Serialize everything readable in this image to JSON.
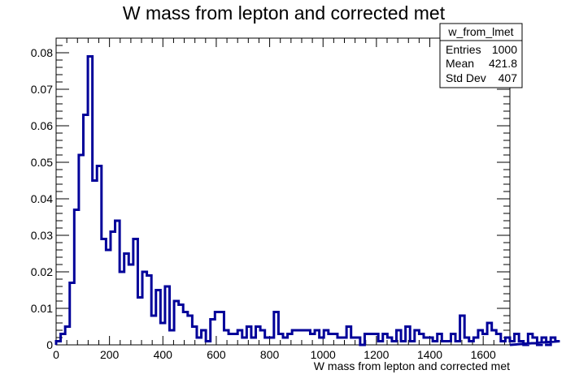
{
  "chart_data": {
    "type": "histogram",
    "title": "W mass from lepton and corrected met",
    "xlabel": "W mass from lepton and corrected met",
    "ylabel": "",
    "xlim": [
      0,
      1700
    ],
    "ylim": [
      0,
      0.084
    ],
    "bin_width": 17,
    "line_color": "#000099",
    "x_ticks": [
      0,
      200,
      400,
      600,
      800,
      1000,
      1200,
      1400,
      1600
    ],
    "x_tick_labels": [
      "0",
      "200",
      "400",
      "600",
      "800",
      "1000",
      "1200",
      "1400",
      "1600"
    ],
    "y_ticks": [
      0,
      0.01,
      0.02,
      0.03,
      0.04,
      0.05,
      0.06,
      0.07,
      0.08
    ],
    "y_tick_labels": [
      "0",
      "0.01",
      "0.02",
      "0.03",
      "0.04",
      "0.05",
      "0.06",
      "0.07",
      "0.08"
    ],
    "values": [
      0.001,
      0.003,
      0.005,
      0.017,
      0.037,
      0.052,
      0.063,
      0.079,
      0.045,
      0.049,
      0.029,
      0.026,
      0.031,
      0.034,
      0.02,
      0.025,
      0.022,
      0.029,
      0.013,
      0.02,
      0.019,
      0.008,
      0.015,
      0.006,
      0.016,
      0.004,
      0.012,
      0.011,
      0.009,
      0.008,
      0.005,
      0.002,
      0.004,
      0.001,
      0.007,
      0.009,
      0.009,
      0.004,
      0.003,
      0.003,
      0.004,
      0.002,
      0.005,
      0.002,
      0.005,
      0.004,
      0.002,
      0.002,
      0.009,
      0.003,
      0.002,
      0.003,
      0.004,
      0.004,
      0.004,
      0.004,
      0.003,
      0.004,
      0.002,
      0.004,
      0.003,
      0.003,
      0.002,
      0.002,
      0.005,
      0.002,
      0.002,
      0.0,
      0.003,
      0.003,
      0.003,
      0.001,
      0.003,
      0.002,
      0.001,
      0.004,
      0.001,
      0.005,
      0.001,
      0.004,
      0.003,
      0.002,
      0.002,
      0.001,
      0.003,
      0.001,
      0.001,
      0.003,
      0.001,
      0.008,
      0.002,
      0.001,
      0.002,
      0.004,
      0.003,
      0.006,
      0.004,
      0.003,
      0.001,
      0.002,
      0.001,
      0.003,
      0.001,
      0.0,
      0.003,
      0.002,
      0.0,
      0.002,
      0.0,
      0.002,
      0.001
    ]
  },
  "stats_box": {
    "name": "w_from_lmet",
    "entries_label": "Entries",
    "entries_value": "1000",
    "mean_label": "Mean",
    "mean_value": "421.8",
    "stddev_label": "Std Dev",
    "stddev_value": "407"
  }
}
